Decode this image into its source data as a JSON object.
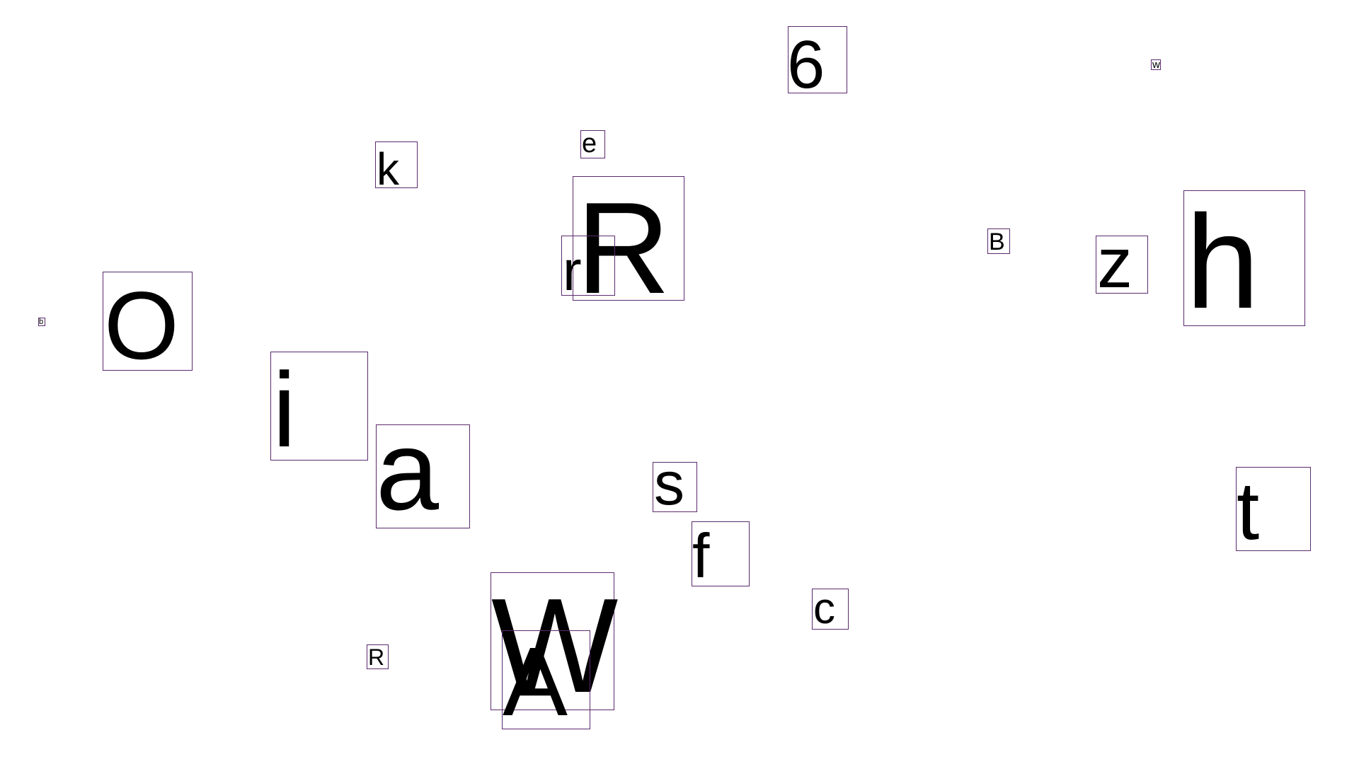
{
  "glyphs": [
    {
      "id": "glyph-6",
      "char": "6"
    },
    {
      "id": "glyph-w-small",
      "char": "w"
    },
    {
      "id": "glyph-k",
      "char": "k"
    },
    {
      "id": "glyph-e",
      "char": "e"
    },
    {
      "id": "glyph-R-large",
      "char": "R"
    },
    {
      "id": "glyph-r-small",
      "char": "r"
    },
    {
      "id": "glyph-B",
      "char": "B"
    },
    {
      "id": "glyph-z",
      "char": "z"
    },
    {
      "id": "glyph-h",
      "char": "h"
    },
    {
      "id": "glyph-b-tiny",
      "char": "b"
    },
    {
      "id": "glyph-O",
      "char": "O"
    },
    {
      "id": "glyph-i",
      "char": "i"
    },
    {
      "id": "glyph-a",
      "char": "a"
    },
    {
      "id": "glyph-s",
      "char": "s"
    },
    {
      "id": "glyph-f",
      "char": "f"
    },
    {
      "id": "glyph-t",
      "char": "t"
    },
    {
      "id": "glyph-c",
      "char": "c"
    },
    {
      "id": "glyph-R-small",
      "char": "R"
    },
    {
      "id": "glyph-W",
      "char": "W"
    },
    {
      "id": "glyph-A",
      "char": "A"
    }
  ],
  "colors": {
    "background": "#ffffff",
    "glyph": "#000000",
    "box_border": "#5b2a6e"
  }
}
